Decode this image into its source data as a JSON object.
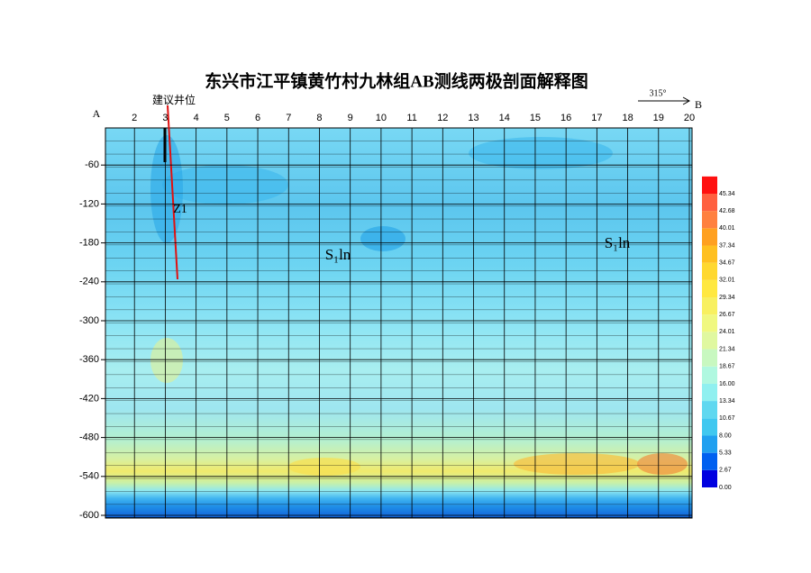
{
  "chart_data": {
    "type": "contour",
    "title": "东兴市江平镇黄竹村九林组AB测线两极剖面解释图",
    "x_start_label": "A",
    "x_end_label": "B",
    "xlim": [
      1,
      20
    ],
    "xticks": [
      2,
      3,
      4,
      5,
      6,
      7,
      8,
      9,
      10,
      11,
      12,
      13,
      14,
      15,
      16,
      17,
      18,
      19,
      20
    ],
    "ylim": [
      0,
      -600
    ],
    "yticks": [
      -60,
      -120,
      -180,
      -240,
      -300,
      -360,
      -420,
      -480,
      -540,
      -600
    ],
    "grid": true,
    "direction_label": "315°",
    "annotations": [
      {
        "text": "建议井位",
        "color": "#c00000"
      },
      {
        "text": "Z1",
        "color": "#e00000"
      },
      {
        "text": "S₁ln",
        "color": "#000000"
      },
      {
        "text": "S₁ln",
        "color": "#000000"
      }
    ],
    "colorbar": {
      "clim": [
        0,
        45.34
      ],
      "ticks": [
        {
          "value": 0,
          "label": "0.00"
        },
        2.67,
        5.33,
        {
          "value": 8,
          "label": "8.00"
        },
        10.67,
        13.34,
        {
          "value": 16,
          "label": "16.00"
        },
        18.67,
        21.34,
        24.01,
        26.67,
        29.34,
        32.01,
        34.67,
        37.34,
        40.01,
        42.68,
        45.34
      ],
      "colors": [
        "#0000e0",
        "#0060f0",
        "#20a0f0",
        "#40c8f0",
        "#60d8f0",
        "#90f0f0",
        "#b0f8e0",
        "#c8f8c0",
        "#e0f8a0",
        "#f0f880",
        "#f8f060",
        "#ffe840",
        "#ffd830",
        "#ffc020",
        "#ffa020",
        "#ff8040",
        "#ff6040",
        "#ff1010"
      ]
    }
  }
}
